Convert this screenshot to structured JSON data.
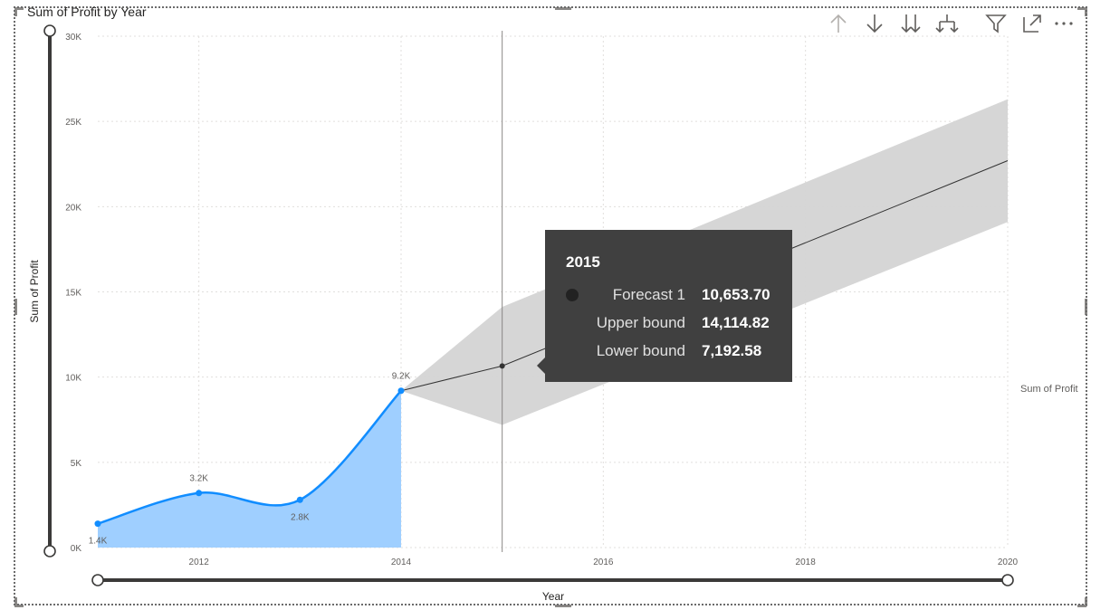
{
  "visual": {
    "title": "Sum of Profit by Year"
  },
  "toolbar": {
    "icons": [
      "arrow-up-icon",
      "arrow-down-icon",
      "double-arrow-down-icon",
      "expand-hierarchy-icon",
      "filter-icon",
      "focus-mode-icon",
      "more-options-icon"
    ]
  },
  "colors": {
    "actual": "#118dff",
    "actual_fill": "#9fcfff",
    "forecast_line": "#333333",
    "confidence_band": "#d4d4d4",
    "tooltip_bg": "#404040"
  },
  "chart_data": {
    "type": "area",
    "xlabel": "Year",
    "ylabel": "Sum of Profit",
    "xlim": [
      2011,
      2020
    ],
    "ylim": [
      0,
      30000
    ],
    "x_ticks": [
      2012,
      2014,
      2016,
      2018,
      2020
    ],
    "x_tick_labels": [
      "2012",
      "2014",
      "2016",
      "2018",
      "2020"
    ],
    "y_ticks": [
      0,
      5000,
      10000,
      15000,
      20000,
      25000,
      30000
    ],
    "y_tick_labels": [
      "0K",
      "5K",
      "10K",
      "15K",
      "20K",
      "25K",
      "30K"
    ],
    "grid": true,
    "series": [
      {
        "name": "Sum of Profit",
        "x": [
          2011,
          2012,
          2013,
          2014
        ],
        "values": [
          1400,
          3200,
          2800,
          9200
        ],
        "data_labels": [
          "1.4K",
          "3.2K",
          "2.8K",
          "9.2K"
        ]
      }
    ],
    "forecast": {
      "name": "Forecast 1",
      "x": [
        2014,
        2015,
        2020
      ],
      "values": [
        9200,
        10653.7,
        22700
      ],
      "upper": [
        9200,
        14114.82,
        26300
      ],
      "lower": [
        9200,
        7192.58,
        19100
      ]
    },
    "hover_x": 2015,
    "tooltip": {
      "header": "2015",
      "rows": [
        {
          "label": "Forecast 1",
          "value": "10,653.70"
        },
        {
          "label": "Upper bound",
          "value": "14,114.82"
        },
        {
          "label": "Lower bound",
          "value": "7,192.58"
        }
      ]
    },
    "legend_side_label": "Sum of Profit"
  }
}
